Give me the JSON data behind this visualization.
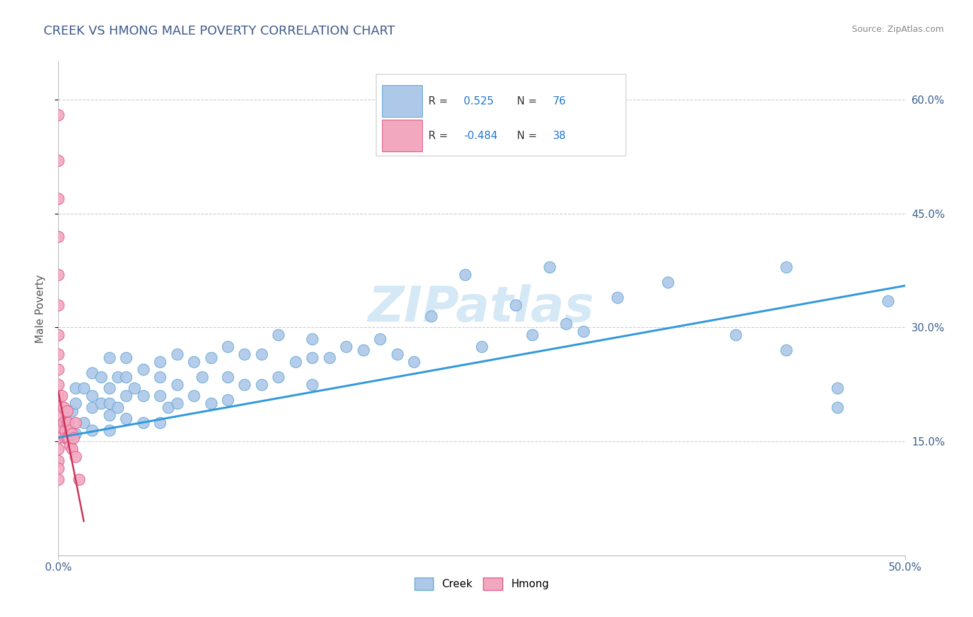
{
  "title": "CREEK VS HMONG MALE POVERTY CORRELATION CHART",
  "source": "Source: ZipAtlas.com",
  "ylabel": "Male Poverty",
  "xlim": [
    0.0,
    0.5
  ],
  "ylim": [
    0.0,
    0.65
  ],
  "yticks": [
    0.15,
    0.3,
    0.45,
    0.6
  ],
  "ytick_labels": [
    "15.0%",
    "30.0%",
    "45.0%",
    "60.0%"
  ],
  "creek_color": "#adc8e8",
  "creek_edge_color": "#6aaad4",
  "hmong_color": "#f2a8bf",
  "hmong_edge_color": "#e06090",
  "creek_line_color": "#3399dd",
  "hmong_line_color": "#cc3355",
  "title_color": "#3d5a8a",
  "axis_label_color": "#3d6090",
  "watermark_color": "#d5e8f5",
  "legend_R_color": "#2277cc",
  "legend_text_color": "#333333",
  "creek_R": "0.525",
  "creek_N": "76",
  "hmong_R": "-0.484",
  "hmong_N": "38",
  "creek_line_x0": 0.0,
  "creek_line_y0": 0.155,
  "creek_line_x1": 0.5,
  "creek_line_y1": 0.355,
  "hmong_line_x0": 0.0,
  "hmong_line_y0": 0.215,
  "hmong_line_x1": 0.015,
  "hmong_line_y1": 0.045,
  "creek_x": [
    0.005,
    0.008,
    0.01,
    0.01,
    0.01,
    0.015,
    0.015,
    0.02,
    0.02,
    0.02,
    0.02,
    0.025,
    0.025,
    0.03,
    0.03,
    0.03,
    0.03,
    0.03,
    0.035,
    0.035,
    0.04,
    0.04,
    0.04,
    0.04,
    0.045,
    0.05,
    0.05,
    0.05,
    0.06,
    0.06,
    0.06,
    0.06,
    0.065,
    0.07,
    0.07,
    0.07,
    0.08,
    0.08,
    0.085,
    0.09,
    0.09,
    0.1,
    0.1,
    0.1,
    0.11,
    0.11,
    0.12,
    0.12,
    0.13,
    0.13,
    0.14,
    0.15,
    0.15,
    0.15,
    0.16,
    0.17,
    0.18,
    0.19,
    0.2,
    0.21,
    0.22,
    0.24,
    0.25,
    0.27,
    0.28,
    0.29,
    0.3,
    0.31,
    0.33,
    0.36,
    0.4,
    0.43,
    0.43,
    0.46,
    0.46,
    0.49
  ],
  "creek_y": [
    0.175,
    0.19,
    0.16,
    0.2,
    0.22,
    0.175,
    0.22,
    0.165,
    0.195,
    0.21,
    0.24,
    0.2,
    0.235,
    0.165,
    0.185,
    0.2,
    0.22,
    0.26,
    0.195,
    0.235,
    0.18,
    0.21,
    0.235,
    0.26,
    0.22,
    0.175,
    0.21,
    0.245,
    0.175,
    0.21,
    0.235,
    0.255,
    0.195,
    0.2,
    0.225,
    0.265,
    0.21,
    0.255,
    0.235,
    0.2,
    0.26,
    0.205,
    0.235,
    0.275,
    0.225,
    0.265,
    0.225,
    0.265,
    0.235,
    0.29,
    0.255,
    0.225,
    0.26,
    0.285,
    0.26,
    0.275,
    0.27,
    0.285,
    0.265,
    0.255,
    0.315,
    0.37,
    0.275,
    0.33,
    0.29,
    0.38,
    0.305,
    0.295,
    0.34,
    0.36,
    0.29,
    0.27,
    0.38,
    0.22,
    0.195,
    0.335
  ],
  "hmong_x": [
    0.0,
    0.0,
    0.0,
    0.0,
    0.0,
    0.0,
    0.0,
    0.0,
    0.0,
    0.0,
    0.0,
    0.0,
    0.0,
    0.0,
    0.0,
    0.0,
    0.0,
    0.0,
    0.0,
    0.002,
    0.002,
    0.003,
    0.003,
    0.004,
    0.004,
    0.005,
    0.005,
    0.005,
    0.006,
    0.006,
    0.007,
    0.007,
    0.008,
    0.008,
    0.009,
    0.01,
    0.01,
    0.012
  ],
  "hmong_y": [
    0.58,
    0.52,
    0.47,
    0.42,
    0.37,
    0.33,
    0.29,
    0.265,
    0.245,
    0.225,
    0.21,
    0.195,
    0.18,
    0.17,
    0.155,
    0.14,
    0.125,
    0.115,
    0.1,
    0.21,
    0.185,
    0.195,
    0.175,
    0.165,
    0.155,
    0.19,
    0.175,
    0.155,
    0.175,
    0.155,
    0.165,
    0.145,
    0.16,
    0.14,
    0.155,
    0.175,
    0.13,
    0.1
  ]
}
